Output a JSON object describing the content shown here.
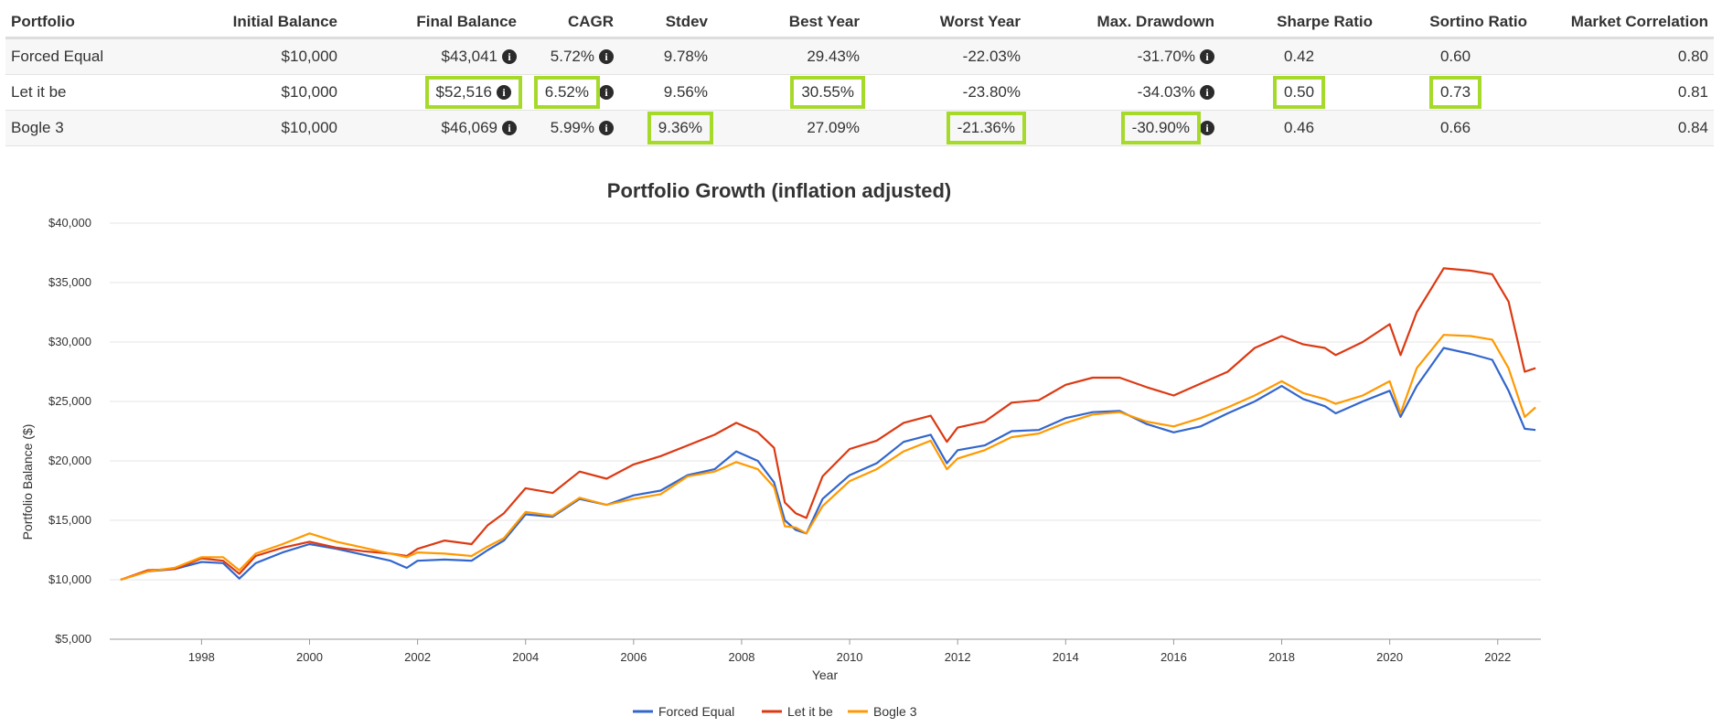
{
  "table": {
    "headers": [
      "Portfolio",
      "Initial Balance",
      "Final Balance",
      "CAGR",
      "Stdev",
      "Best Year",
      "Worst Year",
      "Max. Drawdown",
      "Sharpe Ratio",
      "Sortino Ratio",
      "Market Correlation"
    ],
    "rows": [
      {
        "portfolio": "Forced Equal",
        "initial": "$10,000",
        "final": "$43,041",
        "cagr": "5.72%",
        "stdev": "9.78%",
        "best": "29.43%",
        "worst": "-22.03%",
        "maxdd": "-31.70%",
        "sharpe": "0.42",
        "sortino": "0.60",
        "corr": "0.80"
      },
      {
        "portfolio": "Let it be",
        "initial": "$10,000",
        "final": "$52,516",
        "cagr": "6.52%",
        "stdev": "9.56%",
        "best": "30.55%",
        "worst": "-23.80%",
        "maxdd": "-34.03%",
        "sharpe": "0.50",
        "sortino": "0.73",
        "corr": "0.81"
      },
      {
        "portfolio": "Bogle 3",
        "initial": "$10,000",
        "final": "$46,069",
        "cagr": "5.99%",
        "stdev": "9.36%",
        "best": "27.09%",
        "worst": "-21.36%",
        "maxdd": "-30.90%",
        "sharpe": "0.46",
        "sortino": "0.66",
        "corr": "0.84"
      }
    ],
    "info_icon": "info-circle-icon",
    "highlight_color": "#a6da2a"
  },
  "chart_data": {
    "type": "line",
    "title": "Portfolio Growth (inflation adjusted)",
    "xlabel": "Year",
    "ylabel": "Portfolio Balance ($)",
    "xlim": [
      1996.3,
      2022.8
    ],
    "ylim": [
      5000,
      40000
    ],
    "yticks": [
      5000,
      10000,
      15000,
      20000,
      25000,
      30000,
      35000,
      40000
    ],
    "ytick_labels": [
      "$5,000",
      "$10,000",
      "$15,000",
      "$20,000",
      "$25,000",
      "$30,000",
      "$35,000",
      "$40,000"
    ],
    "xticks": [
      1998,
      2000,
      2002,
      2004,
      2006,
      2008,
      2010,
      2012,
      2014,
      2016,
      2018,
      2020,
      2022
    ],
    "xtick_labels": [
      "1998",
      "2000",
      "2002",
      "2004",
      "2006",
      "2008",
      "2010",
      "2012",
      "2014",
      "2016",
      "2018",
      "2020",
      "2022"
    ],
    "grid": true,
    "legend_position": "bottom-center",
    "x": [
      1996.5,
      1997.0,
      1997.5,
      1998.0,
      1998.4,
      1998.7,
      1999.0,
      1999.5,
      2000.0,
      2000.5,
      2001.0,
      2001.5,
      2001.8,
      2002.0,
      2002.5,
      2003.0,
      2003.3,
      2003.6,
      2004.0,
      2004.5,
      2005.0,
      2005.5,
      2006.0,
      2006.5,
      2007.0,
      2007.5,
      2007.9,
      2008.3,
      2008.6,
      2008.8,
      2009.0,
      2009.2,
      2009.5,
      2010.0,
      2010.5,
      2011.0,
      2011.5,
      2011.8,
      2012.0,
      2012.5,
      2013.0,
      2013.5,
      2014.0,
      2014.5,
      2015.0,
      2015.5,
      2016.0,
      2016.5,
      2017.0,
      2017.5,
      2018.0,
      2018.4,
      2018.8,
      2019.0,
      2019.5,
      2020.0,
      2020.2,
      2020.5,
      2021.0,
      2021.5,
      2021.9,
      2022.2,
      2022.5,
      2022.7
    ],
    "series": [
      {
        "name": "Forced Equal",
        "color": "#3366cc",
        "values": [
          10000,
          10700,
          10900,
          11500,
          11400,
          10100,
          11400,
          12300,
          13000,
          12600,
          12100,
          11600,
          11000,
          11600,
          11700,
          11600,
          12500,
          13300,
          15500,
          15300,
          16800,
          16300,
          17100,
          17500,
          18800,
          19300,
          20800,
          20000,
          18200,
          15000,
          14200,
          13900,
          16800,
          18800,
          19800,
          21600,
          22200,
          19800,
          20900,
          21300,
          22500,
          22600,
          23600,
          24100,
          24200,
          23100,
          22400,
          22900,
          24000,
          25000,
          26300,
          25200,
          24600,
          24000,
          25000,
          25900,
          23700,
          26300,
          29500,
          29000,
          28500,
          25900,
          22700,
          22600
        ]
      },
      {
        "name": "Let it be",
        "color": "#dc3912",
        "values": [
          10000,
          10800,
          10900,
          11800,
          11600,
          10500,
          12000,
          12700,
          13200,
          12700,
          12400,
          12200,
          12000,
          12600,
          13300,
          13000,
          14600,
          15600,
          17700,
          17300,
          19100,
          18500,
          19700,
          20400,
          21300,
          22200,
          23200,
          22400,
          21100,
          16500,
          15600,
          15200,
          18700,
          21000,
          21700,
          23200,
          23800,
          21600,
          22800,
          23300,
          24900,
          25100,
          26400,
          27000,
          27000,
          26200,
          25500,
          26500,
          27500,
          29500,
          30500,
          29800,
          29500,
          28900,
          30000,
          31500,
          28900,
          32500,
          36200,
          36000,
          35700,
          33400,
          27500,
          27800
        ]
      },
      {
        "name": "Bogle 3",
        "color": "#ff9900",
        "values": [
          10000,
          10700,
          11000,
          11900,
          11900,
          10800,
          12200,
          13000,
          13900,
          13200,
          12700,
          12200,
          11900,
          12300,
          12200,
          12000,
          12800,
          13500,
          15700,
          15400,
          16900,
          16300,
          16800,
          17200,
          18700,
          19100,
          19900,
          19300,
          17800,
          14500,
          14400,
          13900,
          16200,
          18300,
          19300,
          20800,
          21700,
          19300,
          20200,
          20900,
          22000,
          22300,
          23200,
          23900,
          24100,
          23300,
          22900,
          23600,
          24500,
          25500,
          26700,
          25700,
          25200,
          24800,
          25500,
          26700,
          24000,
          27800,
          30600,
          30500,
          30200,
          27800,
          23700,
          24500
        ]
      }
    ]
  }
}
